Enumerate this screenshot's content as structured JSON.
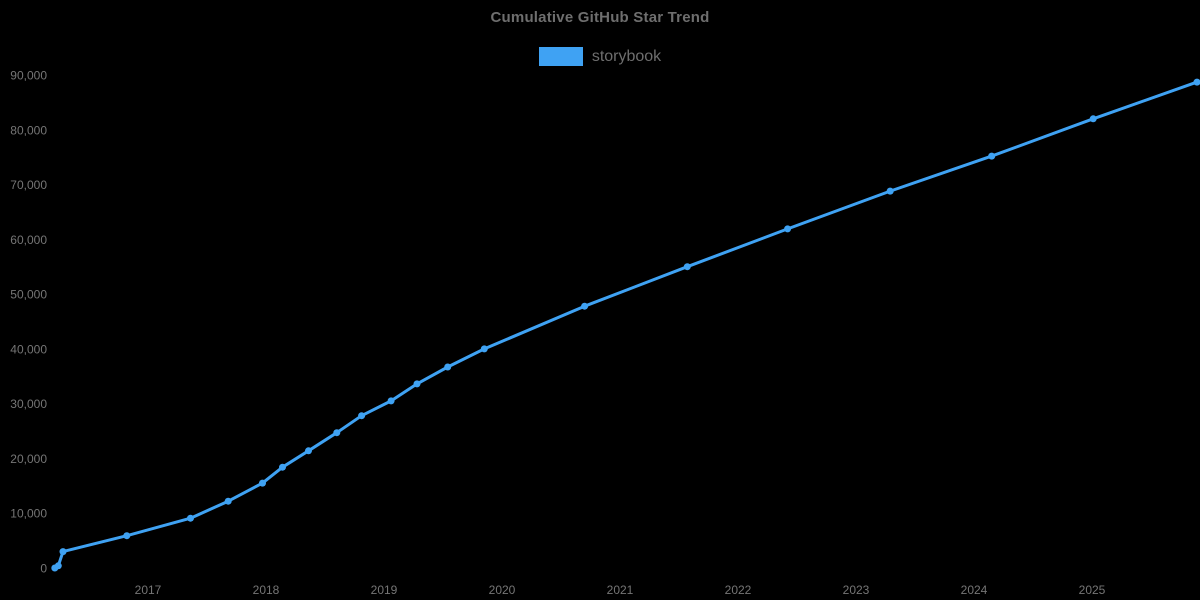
{
  "chart_data": {
    "type": "line",
    "title": "Cumulative GitHub Star Trend",
    "legend_position": "top",
    "grid": false,
    "background": "#000000",
    "text_color": "#757575",
    "title_color": "#6e6e6e",
    "xlabel": "",
    "ylabel": "",
    "xlim": [
      2016.1,
      2025.95
    ],
    "ylim": [
      0,
      90000
    ],
    "x_ticks": [
      2017,
      2018,
      2019,
      2020,
      2021,
      2022,
      2023,
      2024,
      2025
    ],
    "y_ticks": [
      0,
      10000,
      20000,
      30000,
      40000,
      50000,
      60000,
      70000,
      80000,
      90000
    ],
    "series": [
      {
        "name": "storybook",
        "color": "#3fa2f3",
        "marker": "circle",
        "points": [
          {
            "x": 2016.21,
            "y": 0
          },
          {
            "x": 2016.24,
            "y": 400
          },
          {
            "x": 2016.28,
            "y": 3000
          },
          {
            "x": 2016.82,
            "y": 5900
          },
          {
            "x": 2017.36,
            "y": 9100
          },
          {
            "x": 2017.68,
            "y": 12200
          },
          {
            "x": 2017.97,
            "y": 15500
          },
          {
            "x": 2018.14,
            "y": 18400
          },
          {
            "x": 2018.36,
            "y": 21400
          },
          {
            "x": 2018.6,
            "y": 24700
          },
          {
            "x": 2018.81,
            "y": 27800
          },
          {
            "x": 2019.06,
            "y": 30500
          },
          {
            "x": 2019.28,
            "y": 33600
          },
          {
            "x": 2019.54,
            "y": 36700
          },
          {
            "x": 2019.85,
            "y": 40000
          },
          {
            "x": 2020.7,
            "y": 47800
          },
          {
            "x": 2021.57,
            "y": 55000
          },
          {
            "x": 2022.42,
            "y": 61900
          },
          {
            "x": 2023.29,
            "y": 68800
          },
          {
            "x": 2024.15,
            "y": 75200
          },
          {
            "x": 2025.01,
            "y": 82000
          },
          {
            "x": 2025.89,
            "y": 88700
          }
        ]
      }
    ]
  }
}
